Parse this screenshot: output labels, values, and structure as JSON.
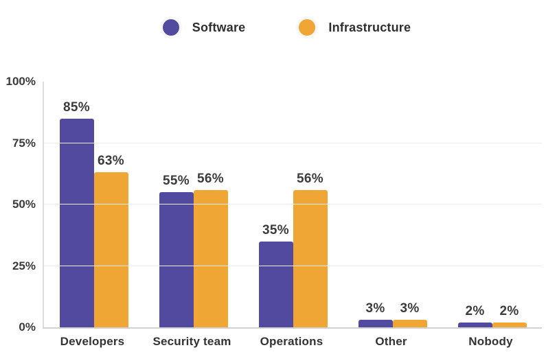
{
  "chart_data": {
    "type": "bar",
    "title": "",
    "xlabel": "",
    "ylabel": "",
    "categories": [
      "Developers",
      "Security team",
      "Operations",
      "Other",
      "Nobody"
    ],
    "series": [
      {
        "name": "Software",
        "color": "#514a9e",
        "values": [
          85,
          55,
          35,
          3,
          2
        ],
        "labels": [
          "85%",
          "55%",
          "35%",
          "3%",
          "2%"
        ]
      },
      {
        "name": "Infrastructure",
        "color": "#f0a634",
        "values": [
          63,
          56,
          56,
          3,
          2
        ],
        "labels": [
          "63%",
          "56%",
          "56%",
          "3%",
          "2%"
        ]
      }
    ],
    "ylim": [
      0,
      100
    ],
    "y_ticks": [
      {
        "value": 0,
        "label": "0%"
      },
      {
        "value": 25,
        "label": "25%"
      },
      {
        "value": 50,
        "label": "50%"
      },
      {
        "value": 75,
        "label": "75%"
      },
      {
        "value": 100,
        "label": "100%"
      }
    ],
    "gridlines": [
      25,
      50,
      75
    ],
    "grid": true,
    "legend_position": "top"
  },
  "colors": {
    "software": "#514a9e",
    "infrastructure": "#f0a634",
    "label_text": "#3b3b3b",
    "gridline": "#ededed",
    "axis_line": "#d2d2d2",
    "background": "#ffffff"
  }
}
